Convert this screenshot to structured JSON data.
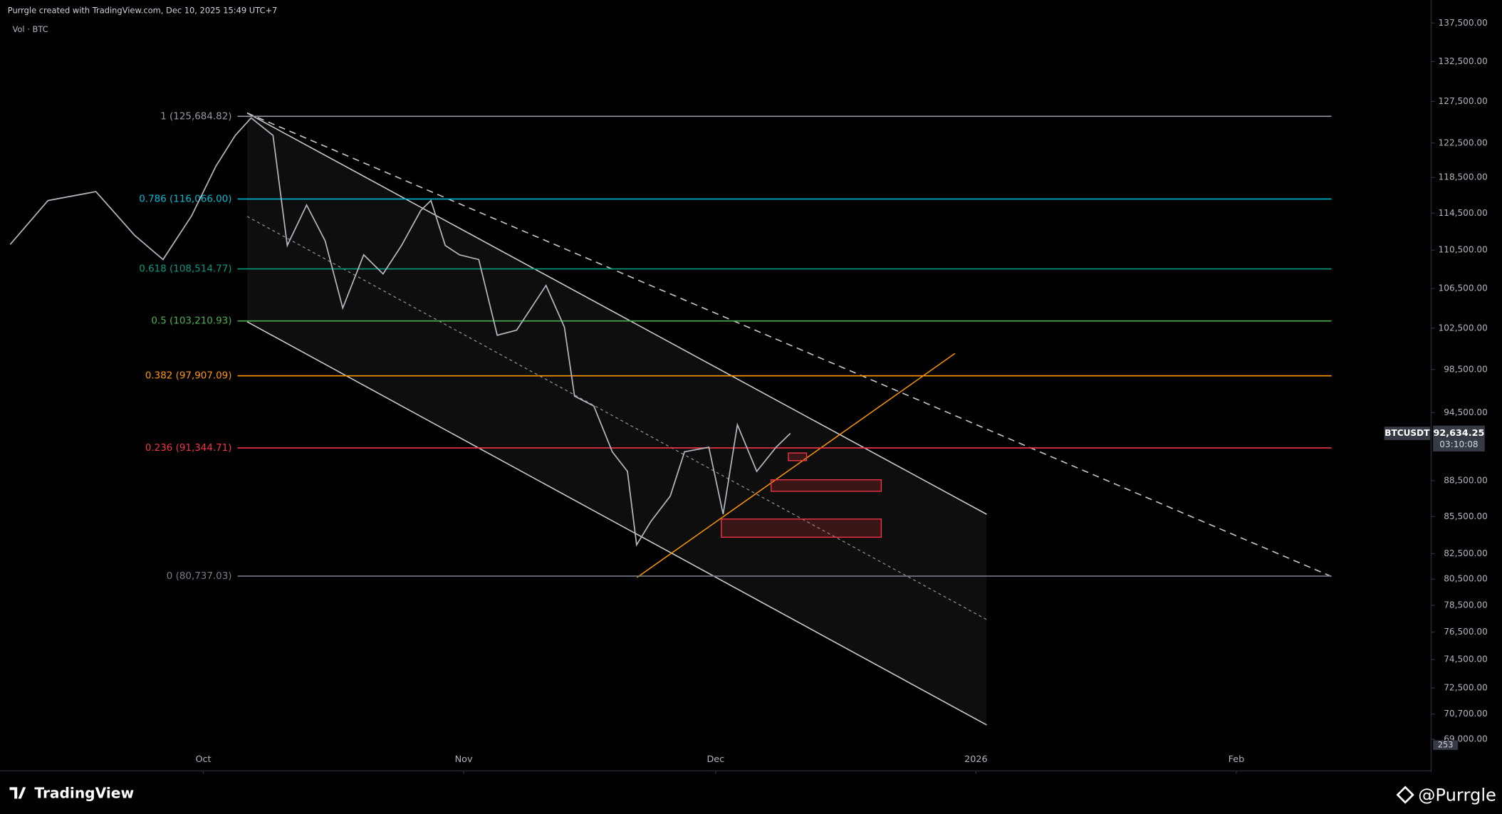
{
  "header": {
    "credit": "Purrgle created with TradingView.com, Dec 10, 2025 15:49 UTC+7",
    "indicator": "Vol · BTC"
  },
  "footer": {
    "brand": "TradingView",
    "author": "@Purrgle"
  },
  "chart_data": {
    "type": "line",
    "log_scale": true,
    "x": [
      -23,
      -18.5,
      -12.8,
      -8.2,
      -4.8,
      -1.4,
      1.5,
      3.8,
      5.7,
      8.3,
      10,
      12.3,
      14.5,
      16.6,
      19.1,
      21.4,
      23.6,
      25.9,
      27.1,
      28.8,
      30.5,
      32.8,
      35,
      37.3,
      40.8,
      43,
      44.2,
      46.5,
      48.7,
      50.5,
      51.6,
      53.3,
      55.6,
      57.3,
      60.2,
      61.9,
      63.6,
      65.9,
      68.2,
      69.9
    ],
    "series": [
      {
        "name": "BTCUSDT",
        "color": "#b2b5be",
        "values": [
          111100,
          115900,
          116900,
          112100,
          109500,
          114200,
          119800,
          123400,
          125500,
          123400,
          111000,
          115400,
          111500,
          104500,
          110000,
          108000,
          111000,
          114800,
          115900,
          111000,
          110000,
          109500,
          101800,
          102300,
          106800,
          102600,
          96000,
          95100,
          91000,
          89300,
          83200,
          85100,
          87200,
          91000,
          91400,
          85700,
          93400,
          89300,
          91400,
          92634.25
        ]
      }
    ],
    "last_price": {
      "value": 92634.25,
      "label": "92,634.25"
    },
    "countdown": "03:10:08",
    "volume_label": "253",
    "xlim": [
      -23.3,
      146.2
    ],
    "xticks": [
      {
        "value": 0,
        "label": "Oct"
      },
      {
        "value": 31,
        "label": "Nov"
      },
      {
        "value": 61,
        "label": "Dec"
      },
      {
        "value": 92,
        "label": "2026"
      },
      {
        "value": 123,
        "label": "Feb"
      }
    ],
    "ylim": [
      69000,
      137500
    ],
    "yticks": [
      {
        "value": 137500,
        "label": "137,500.00"
      },
      {
        "value": 132500,
        "label": "132,500.00"
      },
      {
        "value": 127500,
        "label": "127,500.00"
      },
      {
        "value": 122500,
        "label": "122,500.00"
      },
      {
        "value": 118500,
        "label": "118,500.00"
      },
      {
        "value": 114500,
        "label": "114,500.00"
      },
      {
        "value": 110500,
        "label": "110,500.00"
      },
      {
        "value": 106500,
        "label": "106,500.00"
      },
      {
        "value": 102500,
        "label": "102,500.00"
      },
      {
        "value": 98500,
        "label": "98,500.00"
      },
      {
        "value": 94500,
        "label": "94,500.00"
      },
      {
        "value": 88500,
        "label": "88,500.00"
      },
      {
        "value": 85500,
        "label": "85,500.00"
      },
      {
        "value": 82500,
        "label": "82,500.00"
      },
      {
        "value": 80500,
        "label": "80,500.00"
      },
      {
        "value": 78500,
        "label": "78,500.00"
      },
      {
        "value": 76500,
        "label": "76,500.00"
      },
      {
        "value": 74500,
        "label": "74,500.00"
      },
      {
        "value": 72500,
        "label": "72,500.00"
      },
      {
        "value": 70700,
        "label": "70,700.00"
      },
      {
        "value": 69000,
        "label": "69,000.00"
      }
    ],
    "fib_levels": [
      {
        "price": 125684.82,
        "label": "1 (125,684.82)",
        "color": "#9598a1"
      },
      {
        "price": 116066.0,
        "label": "0.786 (116,066.00)",
        "color": "#00bcd4"
      },
      {
        "price": 108514.77,
        "label": "0.618 (108,514.77)",
        "color": "#089981"
      },
      {
        "price": 103210.93,
        "label": "0.5 (103,210.93)",
        "color": "#4caf50"
      },
      {
        "price": 97907.09,
        "label": "0.382 (97,907.09)",
        "color": "#ff9800"
      },
      {
        "price": 91344.71,
        "label": "0.236 (91,344.71)",
        "color": "#f23645"
      },
      {
        "price": 80737.03,
        "label": "0 (80,737.03)",
        "color": "#787b86"
      }
    ]
  }
}
